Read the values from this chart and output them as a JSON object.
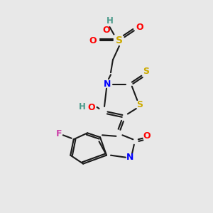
{
  "bg_color": "#e8e8e8",
  "atom_colors": {
    "H": "#4a9a8a",
    "N": "#0000ff",
    "O": "#ff0000",
    "S": "#ccaa00",
    "F": "#cc44aa",
    "bond": "#1a1a1a"
  }
}
